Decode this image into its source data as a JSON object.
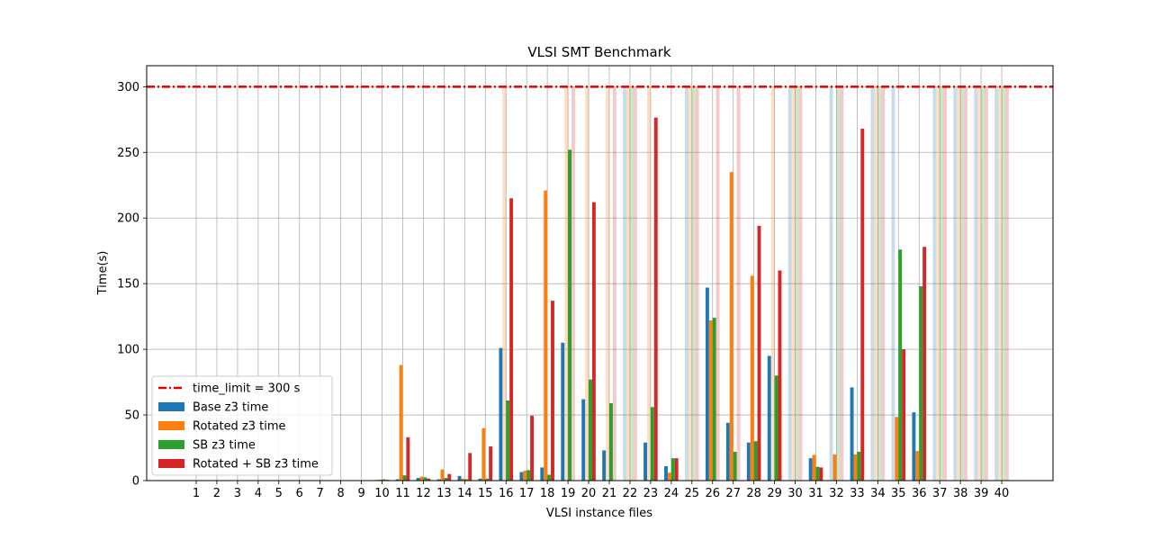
{
  "chart_data": {
    "type": "bar",
    "title": "VLSI SMT Benchmark",
    "xlabel": "VLSI instance files",
    "ylabel": "Time(s)",
    "ylim": [
      0,
      316
    ],
    "yticks": [
      0,
      50,
      100,
      150,
      200,
      250,
      300
    ],
    "categories": [
      "1",
      "2",
      "3",
      "4",
      "5",
      "6",
      "7",
      "8",
      "9",
      "10",
      "11",
      "12",
      "13",
      "14",
      "15",
      "16",
      "17",
      "18",
      "19",
      "20",
      "21",
      "22",
      "23",
      "24",
      "25",
      "26",
      "27",
      "28",
      "29",
      "30",
      "31",
      "32",
      "33",
      "34",
      "35",
      "36",
      "37",
      "38",
      "39",
      "40"
    ],
    "grid": true,
    "legend_position": "lower-left",
    "time_limit": {
      "label": "time_limit = 300 s",
      "value": 300,
      "color": "#e00000"
    },
    "timeout_display": "bars at the time limit drawn faded",
    "series": [
      {
        "name": "Base z3 time",
        "color": "#1f77b4",
        "values": [
          0.1,
          0.1,
          0.1,
          0.1,
          0.1,
          0.1,
          0.1,
          0.1,
          0.2,
          0.5,
          1,
          2,
          1,
          3.5,
          1.5,
          101,
          6.5,
          10,
          105,
          62,
          23,
          300,
          29,
          11,
          300,
          147,
          44,
          29,
          95,
          300,
          17,
          300,
          71,
          300,
          300,
          52,
          300,
          300,
          300,
          300
        ]
      },
      {
        "name": "Rotated z3 time",
        "color": "#ff7f0e",
        "values": [
          0.1,
          0.1,
          0.1,
          0.1,
          0.1,
          0.1,
          0.1,
          0.1,
          0.2,
          0.8,
          88,
          3,
          8.5,
          1.5,
          40,
          300,
          7.5,
          221,
          300,
          300,
          300,
          300,
          300,
          6,
          300,
          122,
          235,
          156,
          300,
          300,
          19.5,
          20,
          20,
          300,
          48.5,
          22.5,
          300,
          300,
          300,
          300
        ]
      },
      {
        "name": "SB z3 time",
        "color": "#2ca02c",
        "values": [
          0.1,
          0.1,
          0.1,
          0.1,
          0.1,
          0.1,
          0.1,
          0.1,
          0.2,
          1,
          4,
          2.5,
          2,
          1,
          1.5,
          61,
          8,
          4.5,
          252,
          77,
          59,
          300,
          56,
          17,
          300,
          124,
          22,
          30,
          80,
          300,
          10.5,
          300,
          22,
          300,
          176,
          148,
          300,
          300,
          300,
          300
        ]
      },
      {
        "name": "Rotated + SB z3 time",
        "color": "#d62728",
        "values": [
          0.1,
          0.1,
          0.1,
          0.1,
          0.1,
          0.1,
          0.1,
          0.1,
          0.2,
          0.6,
          33,
          1.5,
          5,
          21,
          26,
          215,
          49.5,
          137,
          300,
          212,
          300,
          300,
          276.5,
          17,
          300,
          300,
          300,
          194,
          160,
          300,
          10,
          300,
          268,
          300,
          100,
          178,
          300,
          300,
          300,
          300
        ]
      }
    ]
  }
}
